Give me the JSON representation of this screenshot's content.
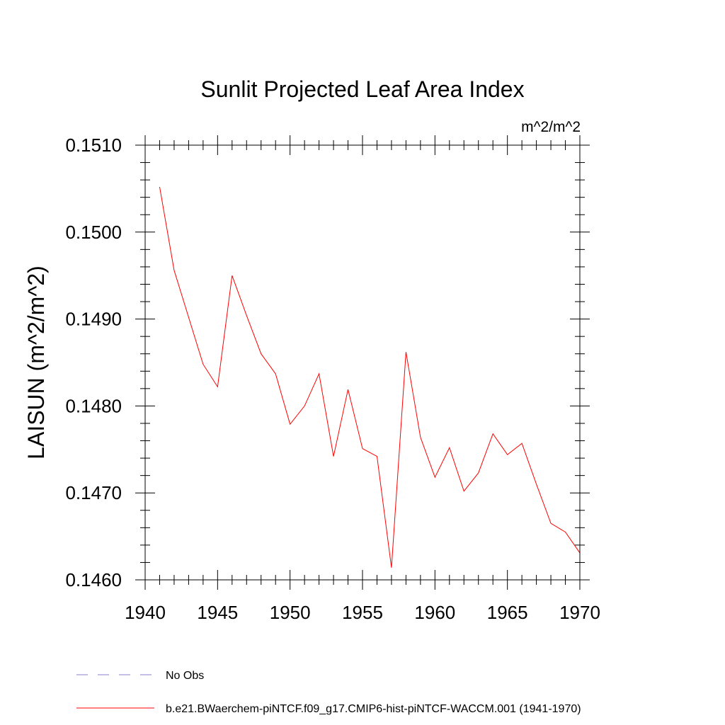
{
  "chart_data": {
    "type": "line",
    "title": "Sunlit Projected Leaf Area Index",
    "units": "m^2/m^2",
    "xlabel": "",
    "ylabel": "LAISUN  (m^2/m^2)",
    "xlim": [
      1940,
      1970
    ],
    "ylim": [
      0.146,
      0.151
    ],
    "xticks": [
      1940,
      1945,
      1950,
      1955,
      1960,
      1965,
      1970
    ],
    "yticks": [
      0.146,
      0.147,
      0.148,
      0.149,
      0.15,
      0.151
    ],
    "ytick_labels": [
      "0.1460",
      "0.1470",
      "0.1480",
      "0.1490",
      "0.1500",
      "0.1510"
    ],
    "grid": false,
    "legend_position": "bottom",
    "series": [
      {
        "name": "b.e21.BWaerchem-piNTCF.f09_g17.CMIP6-hist-piNTCF-WACCM.001 (1941-1970)",
        "color": "#ff0000",
        "style": "solid",
        "x": [
          1941,
          1942,
          1943,
          1944,
          1945,
          1946,
          1947,
          1948,
          1949,
          1950,
          1951,
          1952,
          1953,
          1954,
          1955,
          1956,
          1957,
          1958,
          1959,
          1960,
          1961,
          1962,
          1963,
          1964,
          1965,
          1966,
          1967,
          1968,
          1969,
          1970
        ],
        "y": [
          0.15052,
          0.14956,
          0.14902,
          0.14848,
          0.14822,
          0.1495,
          0.14904,
          0.1486,
          0.14837,
          0.14779,
          0.148,
          0.14837,
          0.14742,
          0.14819,
          0.14751,
          0.14742,
          0.14614,
          0.14862,
          0.14764,
          0.14718,
          0.14752,
          0.14702,
          0.14723,
          0.14768,
          0.14744,
          0.14757,
          0.1471,
          0.14665,
          0.14655,
          0.14631
        ]
      },
      {
        "name": "No Obs",
        "color": "#8a7fd0",
        "style": "dashed",
        "x": [],
        "y": []
      }
    ]
  }
}
